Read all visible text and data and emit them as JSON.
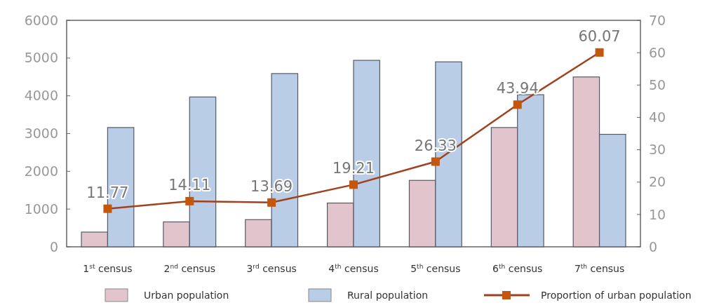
{
  "chart_data": {
    "type": "bar",
    "categories": [
      "1$^{st}$ census",
      "2$^{nd}$ census",
      "3$^{rd}$ census",
      "4$^{th}$ census",
      "5$^{th}$ census",
      "6$^{th}$ census",
      "7$^{th}$ census"
    ],
    "series": [
      {
        "name": "Urban population",
        "color": "#e2c4cc",
        "values": [
          390,
          660,
          720,
          1160,
          1760,
          3160,
          4500
        ]
      },
      {
        "name": "Rural population",
        "color": "#b9cde6",
        "values": [
          3160,
          3970,
          4590,
          4940,
          4900,
          4030,
          2980
        ]
      },
      {
        "name": "Proportion of urban population",
        "type": "line",
        "axis": "y2",
        "color": "#a0421e",
        "marker": "square",
        "data_labels": true,
        "values": [
          11.77,
          14.11,
          13.69,
          19.21,
          26.33,
          43.94,
          60.07
        ]
      }
    ],
    "ylim": [
      0,
      6000
    ],
    "yticks": [
      0,
      1000,
      2000,
      3000,
      4000,
      5000,
      6000
    ],
    "y2lim": [
      0,
      70
    ],
    "y2ticks": [
      0,
      10,
      20,
      30,
      40,
      50,
      60,
      70
    ],
    "grid": false,
    "legend": "bottom"
  }
}
